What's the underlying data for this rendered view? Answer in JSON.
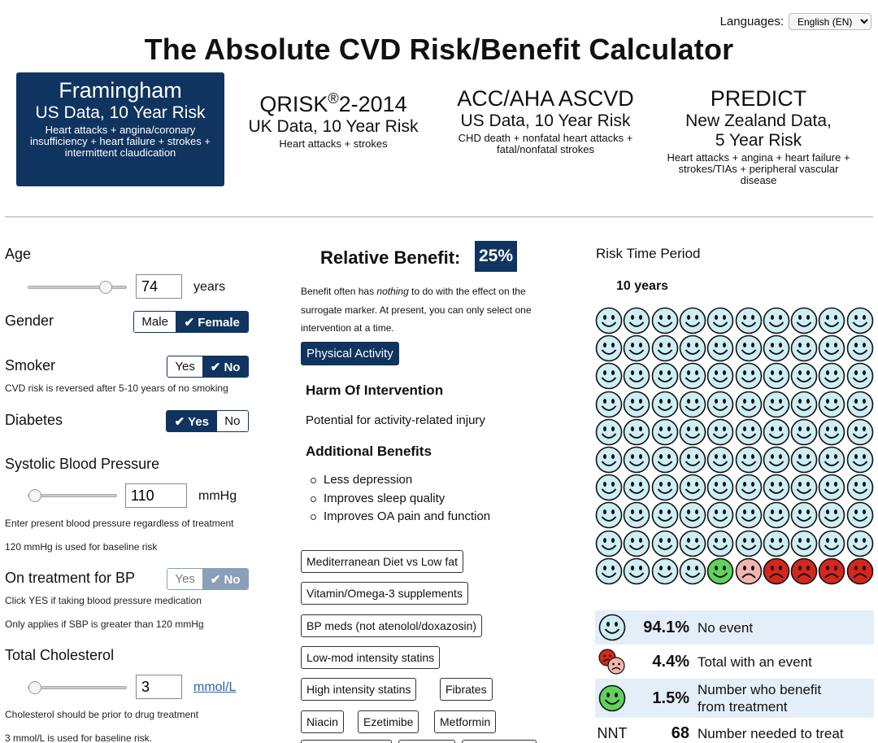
{
  "languages": {
    "label": "Languages:",
    "selected": "English (EN)"
  },
  "title": "The Absolute CVD Risk/Benefit Calculator",
  "models": [
    {
      "name": "Framingham",
      "data": "US Data, 10 Year Risk",
      "desc": "Heart attacks + angina/coronary insufficiency + heart failure + strokes + intermittent claudication",
      "active": true
    },
    {
      "name": "QRISK",
      "sup": "®",
      "name_suffix": "2-2014",
      "data": "UK Data, 10 Year Risk",
      "desc": "Heart attacks + strokes"
    },
    {
      "name": "ACC/AHA ASCVD",
      "data": "US Data, 10 Year Risk",
      "desc": "CHD death + nonfatal heart attacks + fatal/nonfatal strokes"
    },
    {
      "name": "PREDICT",
      "data": "New Zealand Data, 5 Year Risk",
      "desc": "Heart attacks + angina + heart failure + strokes/TIAs + peripheral vascular disease"
    }
  ],
  "inputs": {
    "age": {
      "label": "Age",
      "value": "74",
      "unit": "years",
      "slider_fraction": 0.82
    },
    "gender": {
      "label": "Gender",
      "options": [
        "Male",
        "✔ Female"
      ],
      "selected": "Female"
    },
    "smoker": {
      "label": "Smoker",
      "options": [
        "Yes",
        "✔ No"
      ],
      "selected": "No",
      "note": "CVD risk is reversed after 5-10 years of no smoking"
    },
    "diabetes": {
      "label": "Diabetes",
      "options": [
        "✔ Yes",
        "No"
      ],
      "selected": "Yes"
    },
    "sbp": {
      "label": "Systolic Blood Pressure",
      "value": "110",
      "unit": "mmHg",
      "slider_fraction": 0.0,
      "note1": "Enter present blood pressure regardless of treatment",
      "note2": "120 mmHg is used for baseline risk"
    },
    "bp_treatment": {
      "label": "On treatment for BP",
      "options": [
        "Yes",
        "✔ No"
      ],
      "selected": "No",
      "note1": "Click YES if taking blood pressure medication",
      "note2": "Only applies if SBP is greater than 120 mmHg"
    },
    "cholesterol": {
      "label": "Total Cholesterol",
      "value": "3",
      "unit": "mmol/L",
      "slider_fraction": 0.0,
      "note1": "Cholesterol should be prior to drug treatment",
      "note2": "3 mmol/L is used for baseline risk."
    }
  },
  "benefit": {
    "heading": "Relative Benefit:",
    "value": "25%",
    "note_pre": "Benefit often has ",
    "note_em": "nothing",
    "note_post": " to do with the effect on the surrogate marker. At present, you can only select one intervention at a time.",
    "selected_intervention": "Physical Activity",
    "harm_heading": "Harm Of Intervention",
    "harm_text": "Potential for activity-related injury",
    "additional_heading": "Additional Benefits",
    "additional": [
      "Less depression",
      "Improves sleep quality",
      "Improves OA pain and function"
    ],
    "interventions": [
      "Mediterranean Diet vs Low fat",
      "Vitamin/Omega-3 supplements",
      "BP meds (not atenolol/doxazosin)",
      "Low-mod intensity statins",
      "High intensity statins",
      "Fibrates",
      "Niacin",
      "Ezetimibe",
      "Metformin"
    ]
  },
  "risk": {
    "heading": "Risk Time Period",
    "period": "10 years",
    "faces": {
      "total": 100,
      "green": 1,
      "pink": 1,
      "red": 4,
      "colors": {
        "blue": "#cdeef4",
        "green": "#5fd35b",
        "pink": "#f3b5ad",
        "red": "#d5271c"
      }
    },
    "summary": [
      {
        "icon": "smiley-icon",
        "pct": "94.1%",
        "text": "No event"
      },
      {
        "icon": "sad-faces-icon",
        "pct": "4.4%",
        "text": "Total with an event"
      },
      {
        "icon": "green-smiley-icon",
        "pct": "1.5%",
        "text": "Number who benefit from treatment"
      },
      {
        "icon": "",
        "pct": "68",
        "label": "NNT",
        "text": "Number needed to treat"
      }
    ]
  }
}
